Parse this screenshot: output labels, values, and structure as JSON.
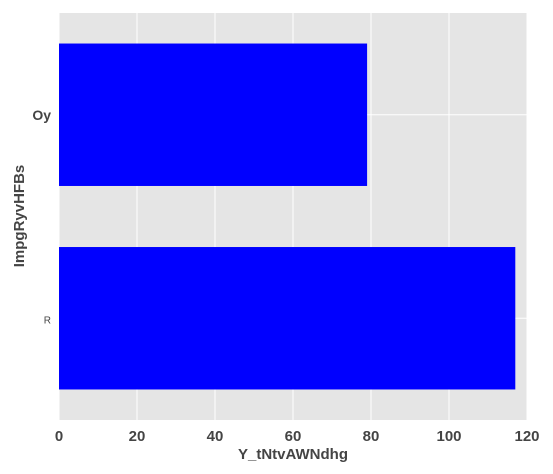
{
  "chart_data": {
    "type": "bar",
    "orientation": "horizontal",
    "categories": [
      "Oy",
      "R"
    ],
    "values": [
      79,
      117
    ],
    "xlabel": "Y_tNtvAWNdhg",
    "ylabel": "ImpgRyvHFBs",
    "xlim": [
      0,
      120
    ],
    "x_ticks": [
      "0",
      "20",
      "40",
      "60",
      "80",
      "100",
      "120"
    ],
    "grid": true,
    "bar_color": "#0000ff",
    "background_color": "#e5e5e5",
    "grid_color": "#ffffff"
  }
}
